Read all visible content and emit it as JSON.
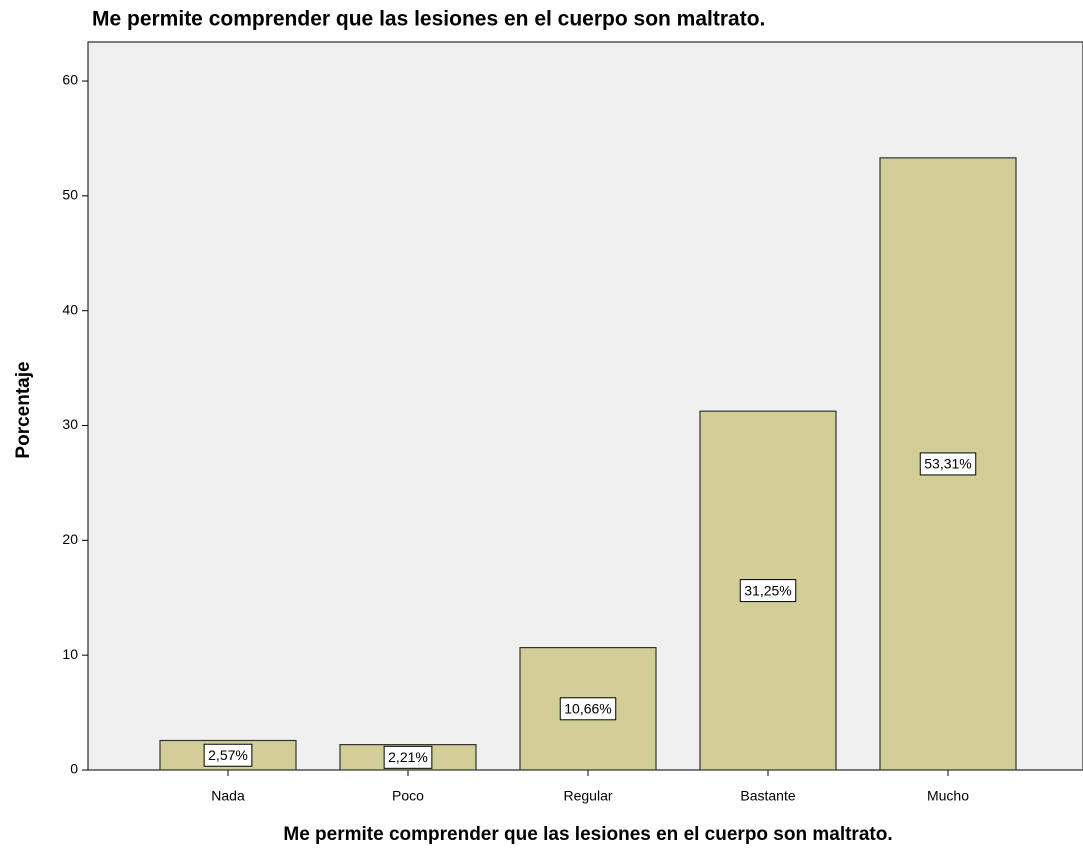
{
  "chart_data": {
    "type": "bar",
    "title": "Me permite comprender que las lesiones en el cuerpo son maltrato.",
    "x_label": "Me permite comprender que las lesiones en el cuerpo son maltrato.",
    "y_label": "Porcentaje",
    "categories": [
      "Nada",
      "Poco",
      "Regular",
      "Bastante",
      "Mucho"
    ],
    "values": [
      2.57,
      2.21,
      10.66,
      31.25,
      53.31
    ],
    "value_labels": [
      "2,57%",
      "2,21%",
      "10,66%",
      "31,25%",
      "53,31%"
    ],
    "color": "#d3ce97",
    "ylim": [
      0,
      63.4
    ],
    "yticks": [
      0,
      10,
      20,
      30,
      40,
      50,
      60
    ]
  }
}
